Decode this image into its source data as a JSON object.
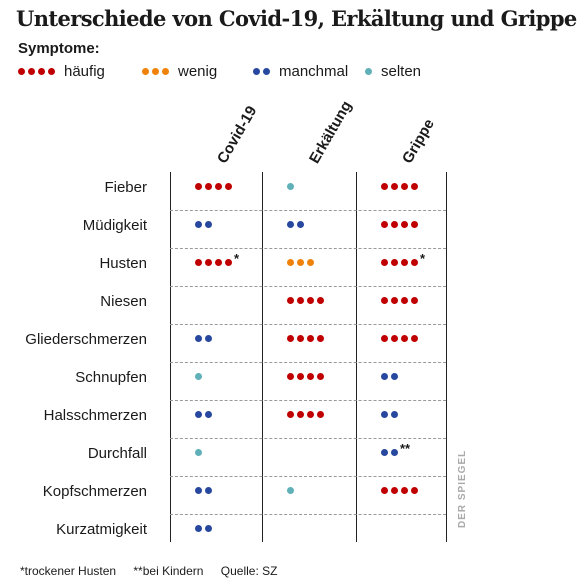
{
  "title": "Unterschiede von Covid-19, Erkältung und Grippe",
  "legend": {
    "heading": "Symptome:",
    "items": [
      {
        "label": "häufig",
        "dots": 4,
        "color": "#c00000"
      },
      {
        "label": "wenig",
        "dots": 3,
        "color": "#f0820a"
      },
      {
        "label": "manchmal",
        "dots": 2,
        "color": "#2848a0"
      },
      {
        "label": "selten",
        "dots": 1,
        "color": "#5fb0b8"
      }
    ]
  },
  "columns": [
    "Covid-19",
    "Erkältung",
    "Grippe"
  ],
  "rows": [
    {
      "symptom": "Fieber",
      "values": [
        {
          "level": "häufig"
        },
        {
          "level": "selten"
        },
        {
          "level": "häufig"
        }
      ]
    },
    {
      "symptom": "Müdigkeit",
      "values": [
        {
          "level": "manchmal"
        },
        {
          "level": "manchmal"
        },
        {
          "level": "häufig"
        }
      ]
    },
    {
      "symptom": "Husten",
      "values": [
        {
          "level": "häufig",
          "mark": "*"
        },
        {
          "level": "wenig"
        },
        {
          "level": "häufig",
          "mark": "*"
        }
      ]
    },
    {
      "symptom": "Niesen",
      "values": [
        {
          "level": null
        },
        {
          "level": "häufig"
        },
        {
          "level": "häufig"
        }
      ]
    },
    {
      "symptom": "Gliederschmerzen",
      "values": [
        {
          "level": "manchmal"
        },
        {
          "level": "häufig"
        },
        {
          "level": "häufig"
        }
      ]
    },
    {
      "symptom": "Schnupfen",
      "values": [
        {
          "level": "selten"
        },
        {
          "level": "häufig"
        },
        {
          "level": "manchmal"
        }
      ]
    },
    {
      "symptom": "Halsschmerzen",
      "values": [
        {
          "level": "manchmal"
        },
        {
          "level": "häufig"
        },
        {
          "level": "manchmal"
        }
      ]
    },
    {
      "symptom": "Durchfall",
      "values": [
        {
          "level": "selten"
        },
        {
          "level": null
        },
        {
          "level": "manchmal",
          "mark": "**"
        }
      ]
    },
    {
      "symptom": "Kopfschmerzen",
      "values": [
        {
          "level": "manchmal"
        },
        {
          "level": "selten"
        },
        {
          "level": "häufig"
        }
      ]
    },
    {
      "symptom": "Kurzatmigkeit",
      "values": [
        {
          "level": "manchmal"
        },
        {
          "level": null
        },
        {
          "level": null
        }
      ]
    }
  ],
  "footnotes": {
    "dry_cough": "*trockener Husten",
    "children": "**bei Kindern",
    "source": "Quelle: SZ"
  },
  "watermark": "DER SPIEGEL"
}
